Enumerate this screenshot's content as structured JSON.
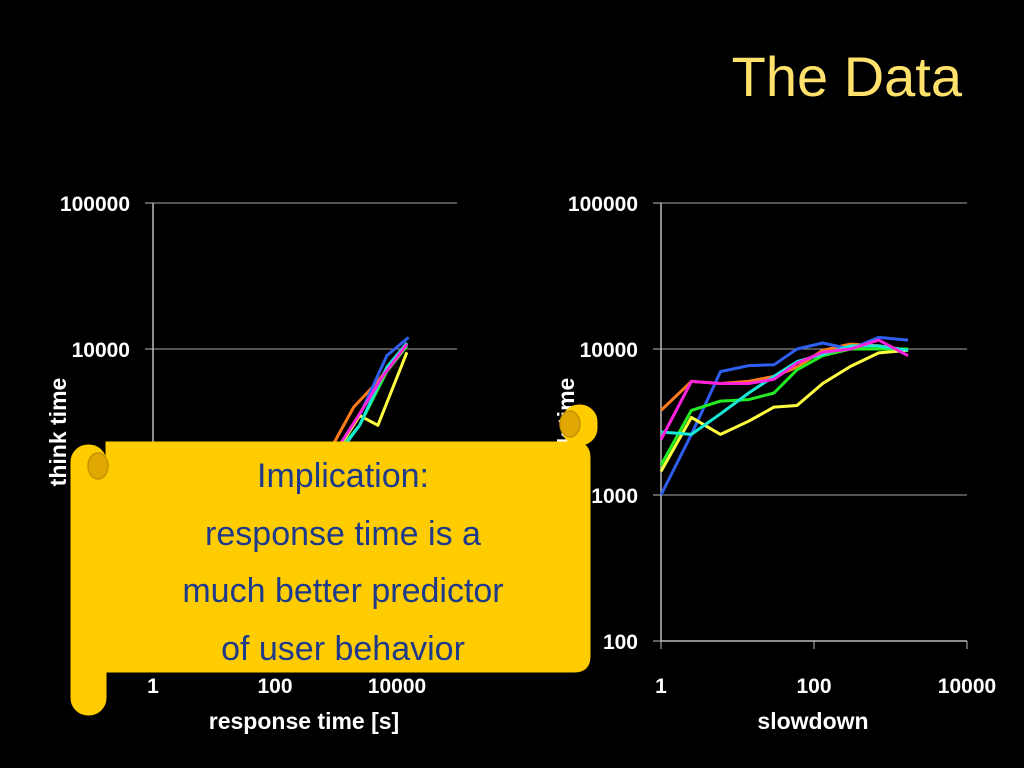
{
  "slide": {
    "title": "The Data"
  },
  "callout": {
    "lines": [
      "Implication:",
      "response time is a",
      "much better predictor",
      "of user behavior"
    ]
  },
  "colors": {
    "title": "#ffe16b",
    "callout_fill": "#ffcc00",
    "callout_text": "#1e3a8a",
    "series": [
      "#ff7b1c",
      "#2f5ff0",
      "#ffff40",
      "#22ee22",
      "#16ead6",
      "#ff22dd"
    ]
  },
  "chart_data": [
    {
      "type": "line",
      "xlabel": "response time [s]",
      "ylabel": "think time",
      "xscale": "log",
      "yscale": "log",
      "xlim": [
        1,
        100000
      ],
      "ylim": [
        100,
        100000
      ],
      "xticks": [
        "1",
        "100",
        "10000"
      ],
      "yticks": [
        "100000",
        "10000"
      ],
      "grid": true,
      "note": "lower portion of chart hidden behind callout",
      "series": [
        {
          "color": "#ff7b1c",
          "x": [
            300,
            800,
            2000,
            5000,
            15000
          ],
          "y": [
            1000,
            2000,
            4000,
            6000,
            11000
          ]
        },
        {
          "color": "#2f5ff0",
          "x": [
            300,
            900,
            2500,
            7000,
            16000
          ],
          "y": [
            1000,
            1800,
            3500,
            9000,
            12000
          ]
        },
        {
          "color": "#ffff40",
          "x": [
            300,
            900,
            2500,
            5000,
            15000
          ],
          "y": [
            1000,
            1800,
            3500,
            3000,
            9500
          ]
        },
        {
          "color": "#22ee22",
          "x": [
            300,
            1000,
            2500,
            7000,
            15000
          ],
          "y": [
            1000,
            1900,
            3000,
            7000,
            10500
          ]
        },
        {
          "color": "#16ead6",
          "x": [
            300,
            1000,
            2500,
            7000,
            15000
          ],
          "y": [
            1000,
            1800,
            3000,
            7500,
            11000
          ]
        },
        {
          "color": "#ff22dd",
          "x": [
            300,
            900,
            2500,
            6000,
            15000
          ],
          "y": [
            1000,
            1850,
            3600,
            6500,
            10800
          ]
        }
      ]
    },
    {
      "type": "line",
      "xlabel": "slowdown",
      "ylabel": "think time",
      "xscale": "log",
      "yscale": "log",
      "xlim": [
        1,
        10000
      ],
      "ylim": [
        100,
        100000
      ],
      "xticks": [
        "1",
        "100",
        "10000"
      ],
      "yticks": [
        "100000",
        "10000",
        "1000",
        "100"
      ],
      "grid": true,
      "series": [
        {
          "color": "#ff7b1c",
          "x": [
            1,
            2.5,
            6,
            14,
            30,
            60,
            130,
            300,
            700,
            1700
          ],
          "y": [
            3800,
            6000,
            5800,
            6000,
            6500,
            7500,
            9800,
            10800,
            10500,
            9800
          ]
        },
        {
          "color": "#2f5ff0",
          "x": [
            1,
            2.5,
            6,
            14,
            30,
            60,
            130,
            300,
            700,
            1700
          ],
          "y": [
            1000,
            2600,
            7000,
            7700,
            7800,
            10000,
            11000,
            10000,
            12000,
            11500
          ]
        },
        {
          "color": "#ffff40",
          "x": [
            1,
            2.5,
            6,
            14,
            30,
            60,
            130,
            300,
            700,
            1700
          ],
          "y": [
            1450,
            3400,
            2600,
            3200,
            4000,
            4100,
            5800,
            7600,
            9400,
            9800
          ]
        },
        {
          "color": "#22ee22",
          "x": [
            1,
            2.5,
            6,
            14,
            30,
            60,
            130,
            300,
            700,
            1700
          ],
          "y": [
            1600,
            3800,
            4400,
            4500,
            5000,
            7200,
            9000,
            10000,
            10000,
            10000
          ]
        },
        {
          "color": "#16ead6",
          "x": [
            1,
            2.5,
            6,
            14,
            30,
            60,
            130,
            300,
            700,
            1700
          ],
          "y": [
            2700,
            2600,
            3600,
            5000,
            6500,
            8200,
            9200,
            10500,
            10500,
            9800
          ]
        },
        {
          "color": "#ff22dd",
          "x": [
            1,
            2.5,
            6,
            14,
            30,
            60,
            130,
            300,
            700,
            1700
          ],
          "y": [
            2400,
            6000,
            5800,
            5800,
            6200,
            8000,
            9500,
            10000,
            11500,
            9000
          ]
        }
      ]
    }
  ]
}
